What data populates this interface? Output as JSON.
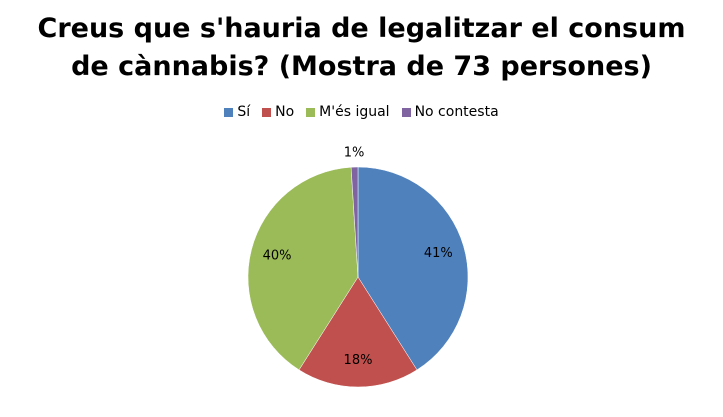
{
  "chart_data": {
    "type": "pie",
    "title": "Creus que s'hauria de legalitzar el consum de cànnabis? (Mostra de 73 persones)",
    "title_lines": [
      "Creus que s'hauria de legalitzar el consum",
      "de cànnabis? (Mostra de 73 persones)"
    ],
    "categories": [
      "Sí",
      "No",
      "M'és igual",
      "No contesta"
    ],
    "values": [
      41,
      18,
      40,
      1
    ],
    "data_labels": [
      "41%",
      "18%",
      "40%",
      "1%"
    ],
    "colors": [
      "#4F81BD",
      "#C0504D",
      "#9BBB59",
      "#8064A2"
    ],
    "legend_position": "top",
    "start_angle": "top, clockwise"
  }
}
